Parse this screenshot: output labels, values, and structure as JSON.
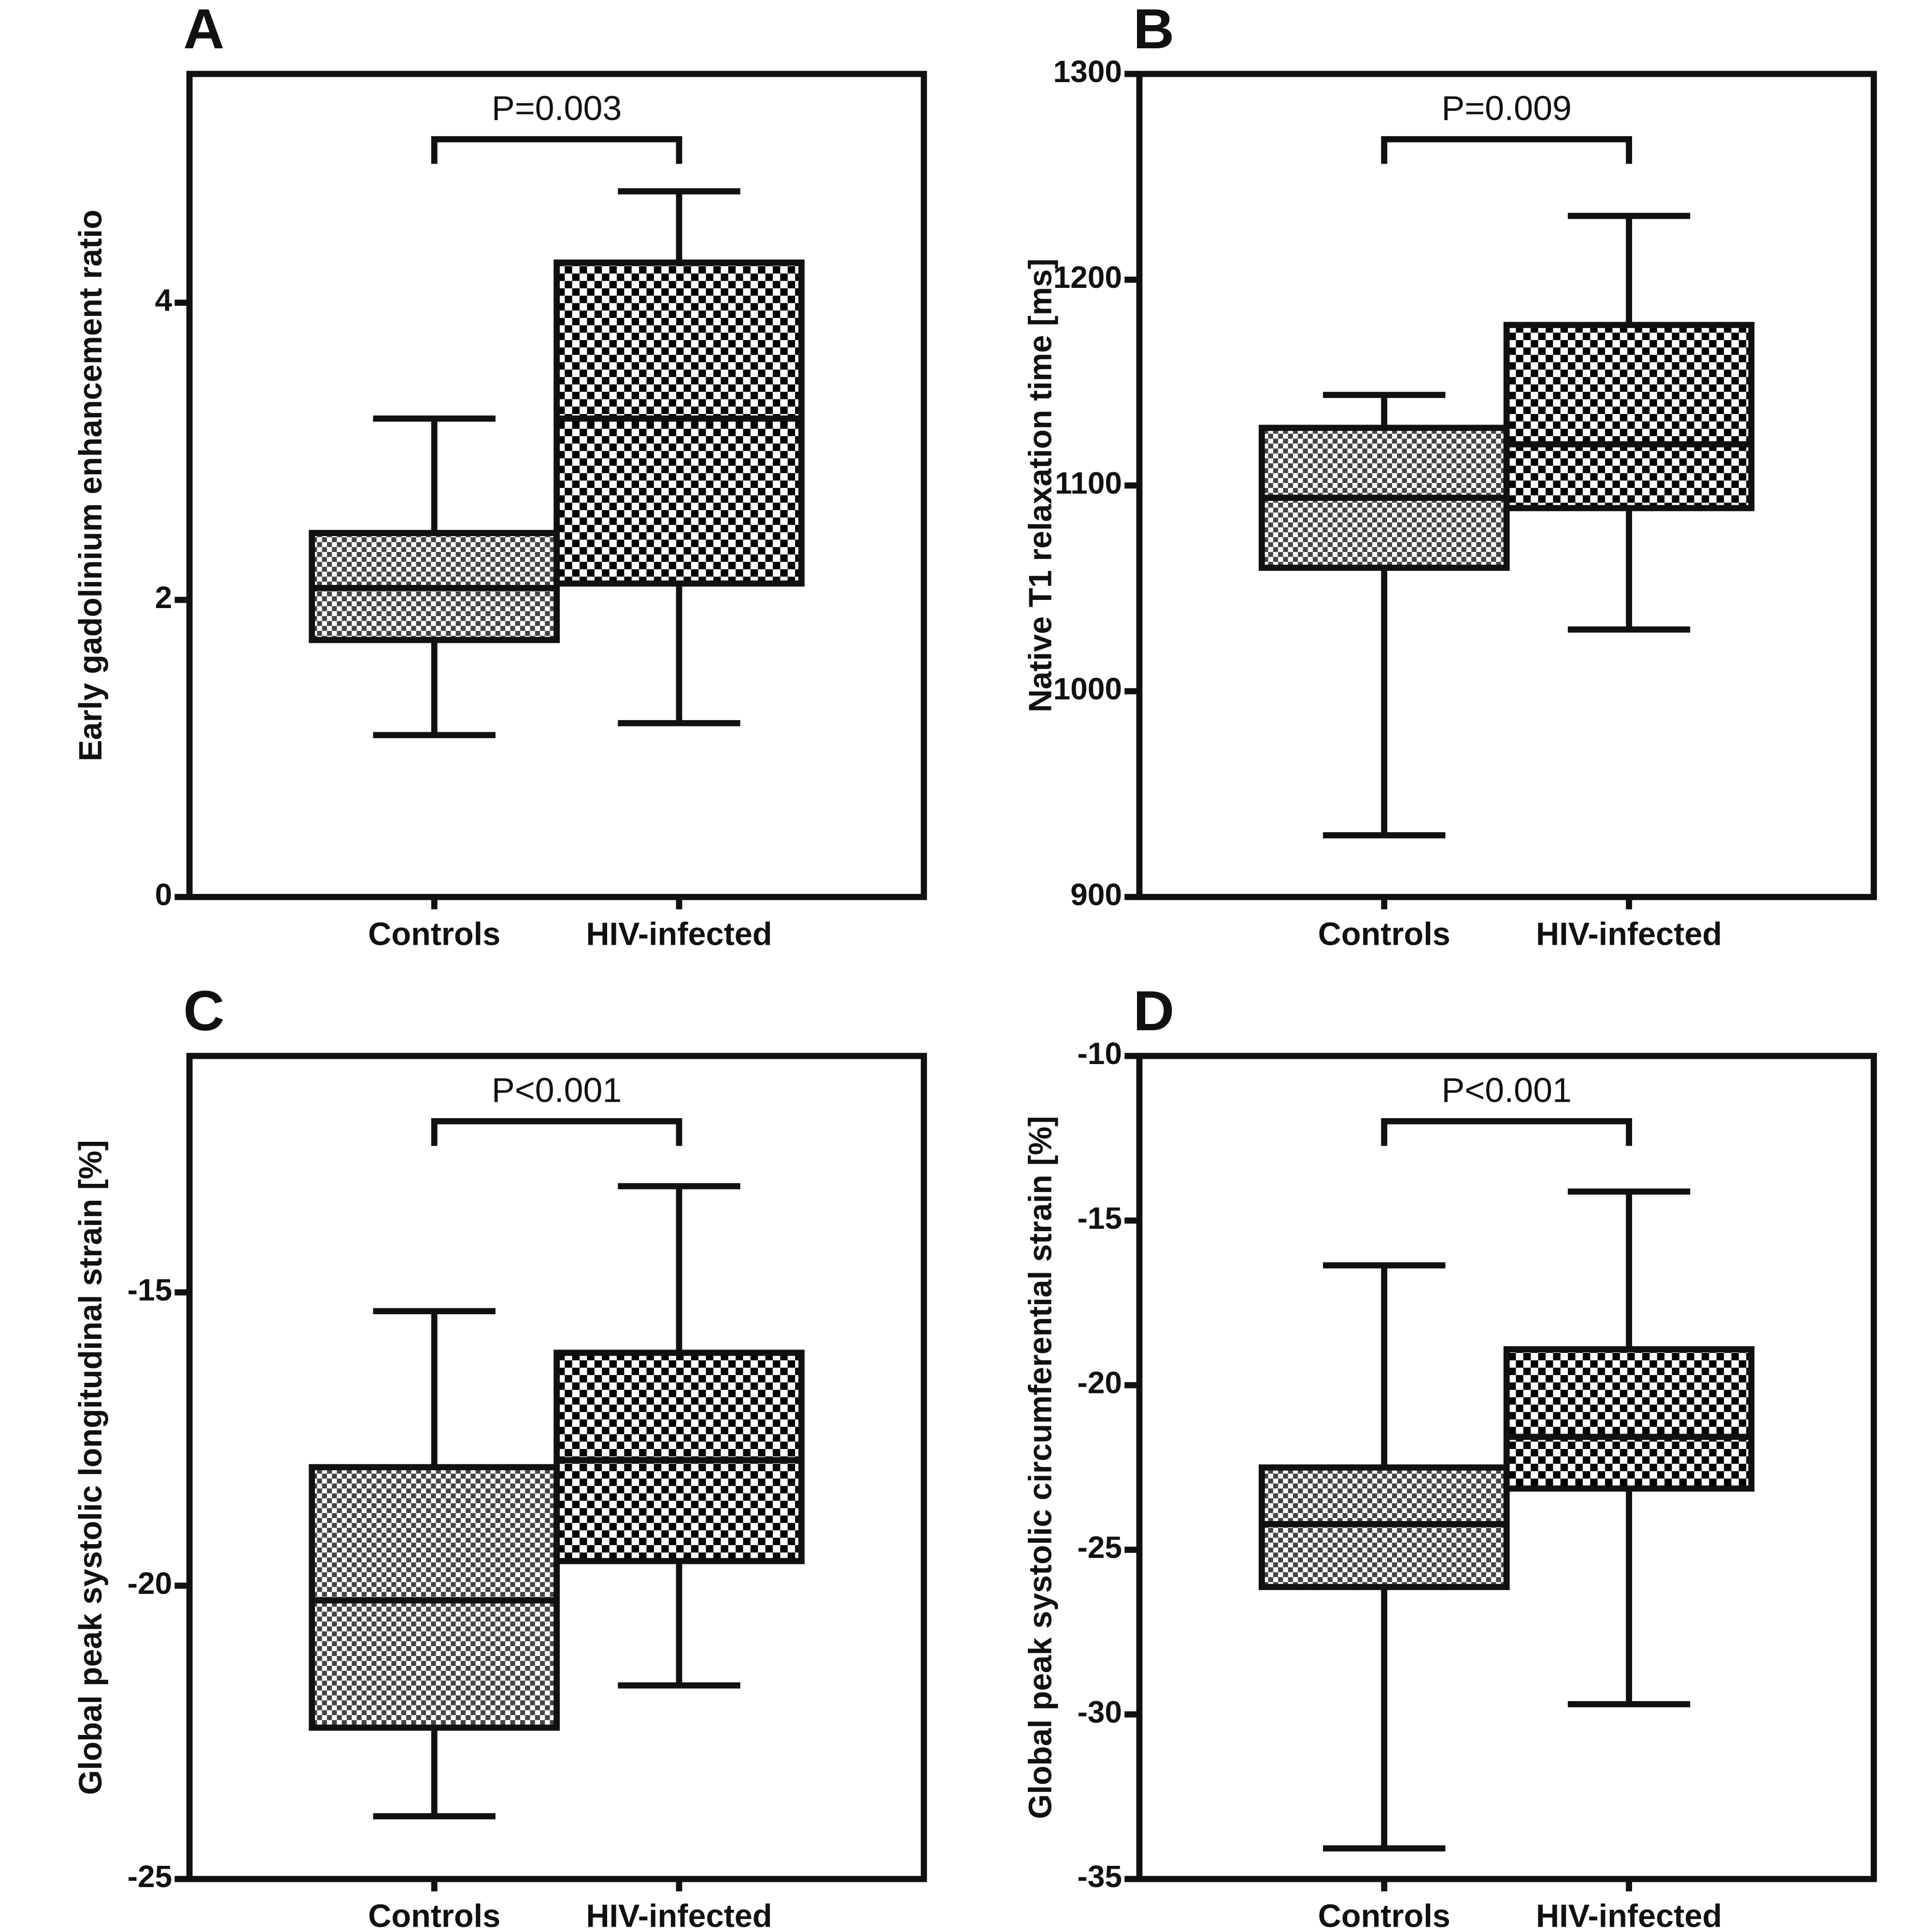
{
  "chart_data": [
    {
      "type": "box",
      "panel": "A",
      "ylabel": "Early gadolinium enhancement ratio",
      "annotation": "P=0.003",
      "categories": [
        "Controls",
        "HIV-infected"
      ],
      "whislo": [
        1.09,
        1.17
      ],
      "q1": [
        1.73,
        2.11
      ],
      "median": [
        2.08,
        3.22
      ],
      "q3": [
        2.45,
        4.27
      ],
      "whishi": [
        3.22,
        4.75
      ],
      "ylim": [
        0,
        5.54
      ],
      "yticks": [
        0,
        2,
        4
      ]
    },
    {
      "type": "box",
      "panel": "B",
      "ylabel": "Native T1 relaxation time [ms]",
      "annotation": "P=0.009",
      "categories": [
        "Controls",
        "HIV-infected"
      ],
      "whislo": [
        930,
        1030
      ],
      "q1": [
        1060,
        1089
      ],
      "median": [
        1094,
        1120
      ],
      "q3": [
        1128,
        1178
      ],
      "whishi": [
        1144,
        1231
      ],
      "ylim": [
        900,
        1300
      ],
      "yticks": [
        900,
        1000,
        1100,
        1200,
        1300
      ]
    },
    {
      "type": "box",
      "panel": "C",
      "ylabel": "Global peak systolic longitudinal strain [%]",
      "annotation": "P<0.001",
      "categories": [
        "Controls",
        "HIV-infected"
      ],
      "whislo": [
        -23.93,
        -21.7
      ],
      "q1": [
        -22.42,
        -19.58
      ],
      "median": [
        -20.25,
        -17.86
      ],
      "q3": [
        -17.98,
        -16.03
      ],
      "whishi": [
        -15.32,
        -13.19
      ],
      "ylim": [
        -25,
        -10.97
      ],
      "yticks": [
        -25,
        -20,
        -15
      ]
    },
    {
      "type": "box",
      "panel": "D",
      "ylabel": "Global peak systolic circumferential strain [%]",
      "annotation": "P<0.001",
      "categories": [
        "Controls",
        "HIV-infected"
      ],
      "whislo": [
        -34.07,
        -29.69
      ],
      "q1": [
        -26.13,
        -23.14
      ],
      "median": [
        -24.22,
        -21.57
      ],
      "q3": [
        -22.5,
        -18.91
      ],
      "whishi": [
        -16.36,
        -14.12
      ],
      "ylim": [
        -35,
        -10
      ],
      "yticks": [
        -35,
        -30,
        -25,
        -20,
        -15,
        -10
      ]
    }
  ]
}
